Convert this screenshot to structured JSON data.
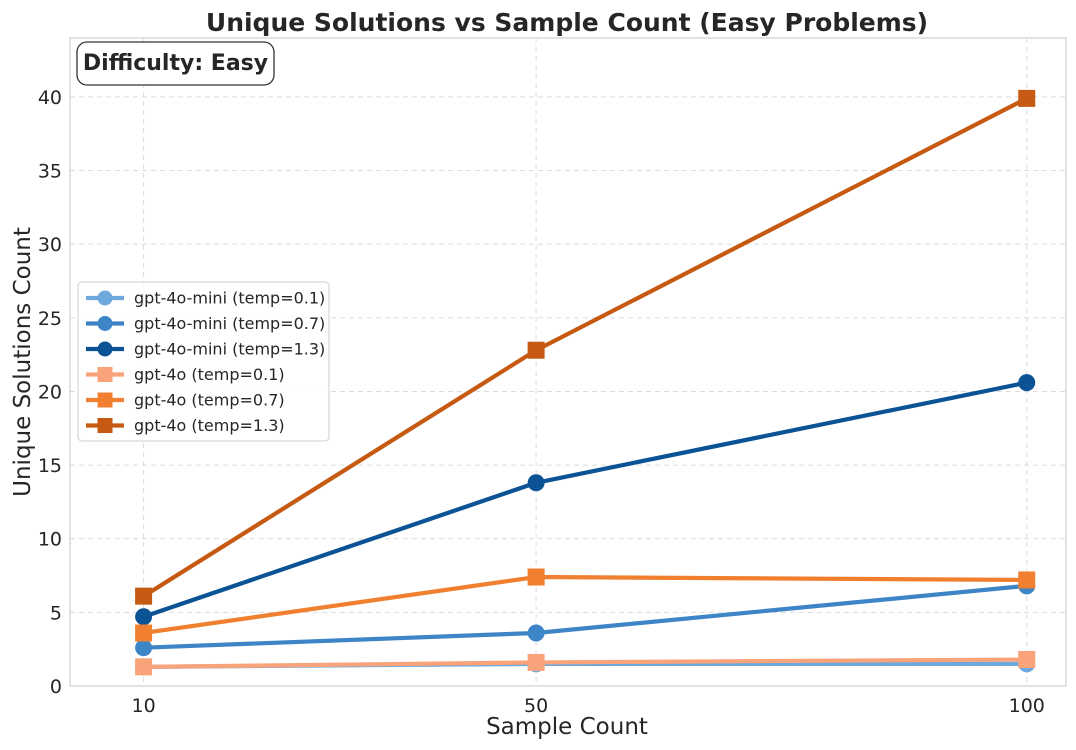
{
  "chart_data": {
    "type": "line",
    "title": "Unique Solutions vs Sample Count (Easy Problems)",
    "xlabel": "Sample Count",
    "ylabel": "Unique Solutions Count",
    "annotation": "Difficulty: Easy",
    "x": [
      10,
      50,
      100
    ],
    "x_ticks": [
      "10",
      "50",
      "100"
    ],
    "y_ticks": [
      "0",
      "5",
      "10",
      "15",
      "20",
      "25",
      "30",
      "35",
      "40"
    ],
    "xlim": [
      2.5,
      104
    ],
    "ylim": [
      0,
      44
    ],
    "grid": true,
    "legend_position": "center-left",
    "series": [
      {
        "name": "gpt-4o-mini (temp=0.1)",
        "values": [
          1.3,
          1.5,
          1.5
        ],
        "color": "#6fa8dc",
        "marker": "circle"
      },
      {
        "name": "gpt-4o-mini (temp=0.7)",
        "values": [
          2.6,
          3.6,
          6.8
        ],
        "color": "#3d85c6",
        "marker": "circle"
      },
      {
        "name": "gpt-4o-mini (temp=1.3)",
        "values": [
          4.7,
          13.8,
          20.6
        ],
        "color": "#0b5394",
        "marker": "circle"
      },
      {
        "name": "gpt-4o (temp=0.1)",
        "values": [
          1.3,
          1.6,
          1.8
        ],
        "color": "#f9a37a",
        "marker": "square"
      },
      {
        "name": "gpt-4o (temp=0.7)",
        "values": [
          3.6,
          7.4,
          7.2
        ],
        "color": "#f07f30",
        "marker": "square"
      },
      {
        "name": "gpt-4o (temp=1.3)",
        "values": [
          6.1,
          22.8,
          39.9
        ],
        "color": "#c65a12",
        "marker": "square"
      }
    ]
  }
}
